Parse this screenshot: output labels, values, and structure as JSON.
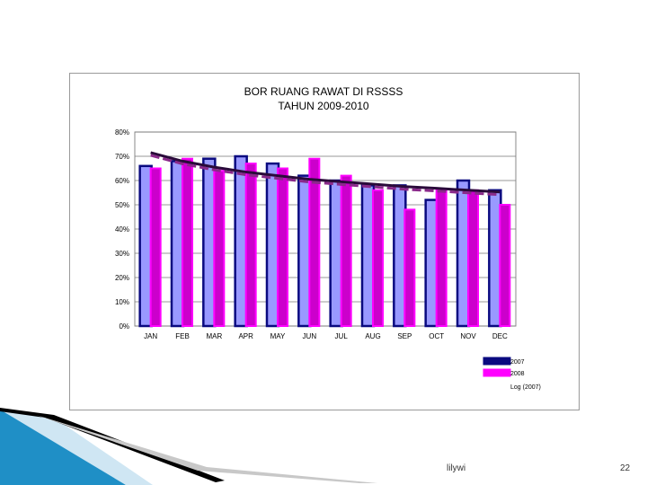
{
  "slide": {
    "author": "lilywi",
    "page_number": "22"
  },
  "colors": {
    "series_2007": "#0a0a80",
    "series_2007_fill": "#9999ff",
    "series_2008": "#ff00ff",
    "series_2008_fill": "#cc00cc",
    "trend_2007": "#2a0a3a",
    "trend_2008": "#8a2a8a",
    "deco_blue": "#1f8fc6",
    "deco_black": "#000000"
  },
  "chart_data": {
    "type": "bar",
    "title": "BOR RUANG RAWAT  DI RSSSS",
    "subtitle": "TAHUN 2009-2010",
    "categories": [
      "JAN",
      "FEB",
      "MAR",
      "APR",
      "MAY",
      "JUN",
      "JUL",
      "AUG",
      "SEP",
      "OCT",
      "NOV",
      "DEC"
    ],
    "series": [
      {
        "name": "2007",
        "values": [
          66,
          68,
          69,
          70,
          67,
          62,
          60,
          58,
          58,
          52,
          60,
          56
        ]
      },
      {
        "name": "2008",
        "values": [
          65,
          69,
          64,
          67,
          65,
          69,
          62,
          56,
          48,
          56,
          56,
          50
        ]
      }
    ],
    "trendline": {
      "name": "Log (2007)",
      "values": [
        71.5,
        68,
        65.5,
        63.5,
        62,
        60.5,
        59.5,
        58.5,
        57.5,
        56.8,
        56,
        55.3
      ]
    },
    "ylim": [
      0,
      80
    ],
    "yticks": [
      "0%",
      "10%",
      "20%",
      "30%",
      "40%",
      "50%",
      "60%",
      "70%",
      "80%"
    ],
    "grid": true,
    "legend_position": "bottom-right"
  }
}
